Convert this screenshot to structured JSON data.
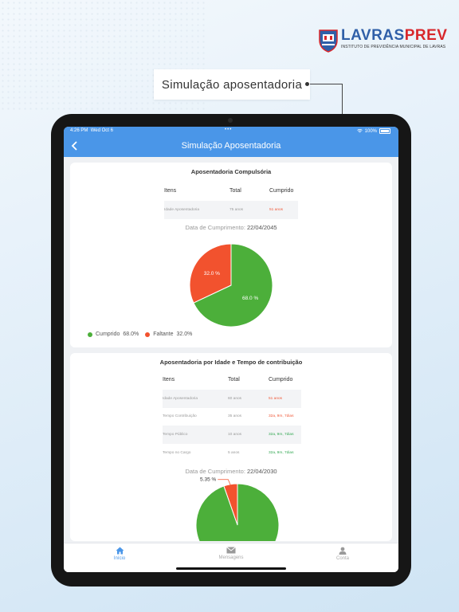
{
  "logo": {
    "part1": "LAVRAS",
    "part2": "PREV",
    "subtitle": "INSTITUTO DE PREVIDÊNCIA MUNICIPAL DE LAVRAS"
  },
  "callout": "Simulação aposentadoria",
  "status": {
    "time": "4:26 PM",
    "date": "Wed Oct 6",
    "battery": "100%"
  },
  "nav": {
    "title": "Simulação Aposentadoria"
  },
  "card1": {
    "title": "Aposentadoria Compulsória",
    "headers": [
      "Itens",
      "Total",
      "Cumprido"
    ],
    "rows": [
      {
        "item": "Idade Aposentadoria",
        "total": "75 anos",
        "done": "51 anos"
      }
    ],
    "date_label": "Data de Cumprimento:",
    "date_value": "22/04/2045",
    "legend": [
      {
        "label": "Cumprido",
        "value": "68.0%"
      },
      {
        "label": "Faltante",
        "value": "32.0%"
      }
    ]
  },
  "card2": {
    "title": "Aposentadoria por Idade e Tempo de contribuição",
    "headers": [
      "Itens",
      "Total",
      "Cumprido"
    ],
    "rows": [
      {
        "item": "Idade Aposentadoria",
        "total": "60 anos",
        "done": "51 anos"
      },
      {
        "item": "Tempo Contribuição",
        "total": "35 anos",
        "done": "32a, 9m, 7dias"
      },
      {
        "item": "Tempo Público",
        "total": "10 anos",
        "done": "32a, 9m, 7dias"
      },
      {
        "item": "Tempo no Cargo",
        "total": "5 anos",
        "done": "32a, 9m, 7dias"
      }
    ],
    "date_label": "Data de Cumprimento:",
    "date_value": "22/04/2030"
  },
  "tabs": [
    {
      "label": "Início"
    },
    {
      "label": "Mensagens"
    },
    {
      "label": "Conta"
    }
  ],
  "chart_data": [
    {
      "type": "pie",
      "labels": [
        "Cumprido",
        "Faltante"
      ],
      "values": [
        68.0,
        32.0
      ],
      "data_labels": [
        "68.0 %",
        "32.0 %"
      ],
      "colors": [
        "#4caf3a",
        "#f2522e"
      ]
    },
    {
      "type": "pie",
      "labels": [
        "Cumprido",
        "Faltante"
      ],
      "values": [
        94.65,
        5.35
      ],
      "data_labels": [
        "",
        "5.35 %"
      ],
      "colors": [
        "#4caf3a",
        "#f2522e"
      ]
    }
  ],
  "colors": {
    "primary": "#4a96e8",
    "green": "#4caf3a",
    "red": "#f2522e"
  }
}
